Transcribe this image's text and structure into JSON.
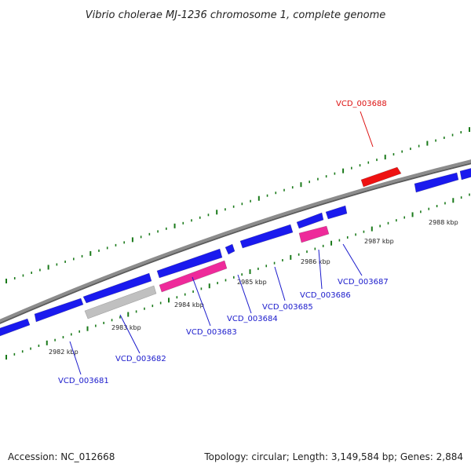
{
  "title": "Vibrio cholerae MJ-1236 chromosome 1, complete genome",
  "footer": {
    "accession": "Accession: NC_012668",
    "summary": "Topology: circular; Length: 3,149,584 bp; Genes: 2,884"
  },
  "colors": {
    "backbone": "#8c8c8c",
    "tick": "#1a7a1a",
    "gene_blue": "#1a1aee",
    "gene_pink": "#ee2a9a",
    "gene_gray": "#c0c0c0",
    "gene_red": "#ee1111",
    "label_blue": "#1a1acc",
    "label_red": "#dd1111"
  },
  "scale": [
    {
      "label": "2982 kbp"
    },
    {
      "label": "2983 kbp"
    },
    {
      "label": "2984 kbp"
    },
    {
      "label": "2985 kbp"
    },
    {
      "label": "2986 kbp"
    },
    {
      "label": "2987 kbp"
    },
    {
      "label": "2988 kbp"
    }
  ],
  "gene_labels": [
    {
      "name": "VCD_003681",
      "color": "blue"
    },
    {
      "name": "VCD_003682",
      "color": "blue"
    },
    {
      "name": "VCD_003683",
      "color": "blue"
    },
    {
      "name": "VCD_003684",
      "color": "blue"
    },
    {
      "name": "VCD_003685",
      "color": "blue"
    },
    {
      "name": "VCD_003686",
      "color": "blue"
    },
    {
      "name": "VCD_003687",
      "color": "blue"
    },
    {
      "name": "VCD_003688",
      "color": "red"
    }
  ]
}
